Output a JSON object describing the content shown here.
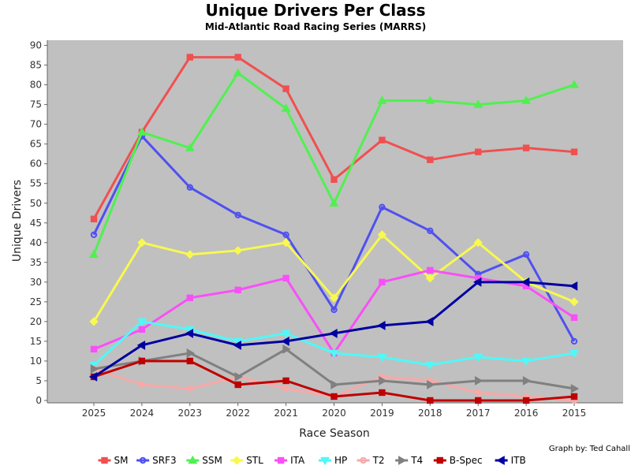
{
  "chart_data": {
    "type": "line",
    "title": "Unique Drivers Per Class",
    "subtitle": "Mid-Atlantic Road Racing Series (MARRS)",
    "xlabel": "Race Season",
    "ylabel": "Unique Drivers",
    "credit": "Graph by: Ted Cahall",
    "categories": [
      "2025",
      "2024",
      "2023",
      "2022",
      "2021",
      "2020",
      "2019",
      "2018",
      "2017",
      "2016",
      "2015"
    ],
    "ylim": [
      0,
      92
    ],
    "yticks": [
      0,
      5,
      10,
      15,
      20,
      25,
      30,
      35,
      40,
      45,
      50,
      55,
      60,
      65,
      70,
      75,
      80,
      85,
      90
    ],
    "grid": false,
    "legend_position": "bottom",
    "plot_background": "#c0c0c0",
    "series": [
      {
        "name": "SM",
        "color": "#f05050",
        "marker": "square",
        "values": [
          46,
          68,
          87,
          87,
          79,
          56,
          66,
          61,
          63,
          64,
          63
        ]
      },
      {
        "name": "SRF3",
        "color": "#5050f0",
        "marker": "circle",
        "values": [
          42,
          67,
          54,
          47,
          42,
          23,
          49,
          43,
          32,
          37,
          15
        ]
      },
      {
        "name": "SSM",
        "color": "#50f050",
        "marker": "triangle-up",
        "values": [
          37,
          68,
          64,
          83,
          74,
          50,
          76,
          76,
          75,
          76,
          80
        ]
      },
      {
        "name": "STL",
        "color": "#f8f850",
        "marker": "diamond",
        "values": [
          20,
          40,
          37,
          38,
          40,
          26,
          42,
          31,
          40,
          30,
          25
        ]
      },
      {
        "name": "ITA",
        "color": "#f850f8",
        "marker": "square",
        "values": [
          13,
          18,
          26,
          28,
          31,
          12,
          30,
          33,
          31,
          29,
          21
        ]
      },
      {
        "name": "HP",
        "color": "#50f8f8",
        "marker": "triangle-down",
        "values": [
          9,
          20,
          18,
          15,
          17,
          12,
          11,
          9,
          11,
          10,
          12
        ]
      },
      {
        "name": "T2",
        "color": "#f8a8a8",
        "marker": "circle",
        "values": [
          8,
          4,
          3,
          6,
          3,
          1,
          6,
          5,
          2,
          1,
          0
        ]
      },
      {
        "name": "T4",
        "color": "#808080",
        "marker": "triangle-right",
        "values": [
          8,
          10,
          12,
          6,
          13,
          4,
          5,
          4,
          5,
          5,
          3
        ]
      },
      {
        "name": "B-Spec",
        "color": "#c00000",
        "marker": "square",
        "values": [
          6,
          10,
          10,
          4,
          5,
          1,
          2,
          0,
          0,
          0,
          1
        ]
      },
      {
        "name": "ITB",
        "color": "#0000a0",
        "marker": "triangle-left",
        "values": [
          6,
          14,
          17,
          14,
          15,
          17,
          19,
          20,
          30,
          30,
          29
        ]
      }
    ]
  }
}
